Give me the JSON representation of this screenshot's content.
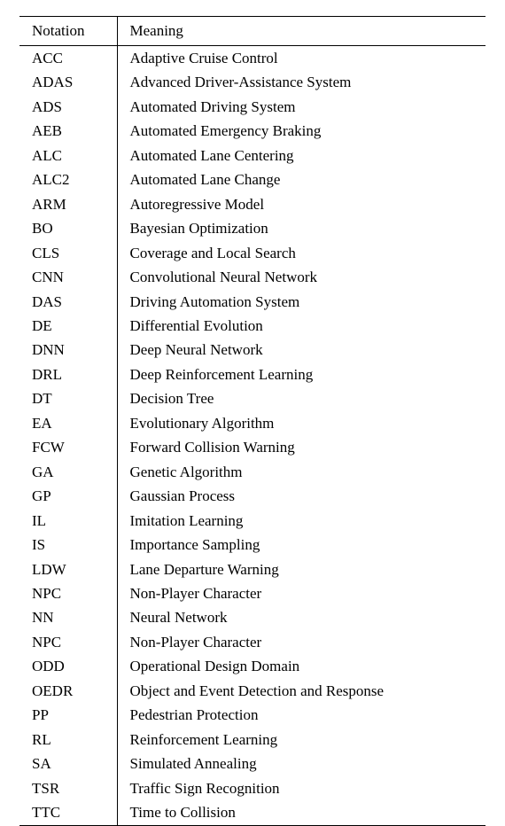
{
  "table": {
    "type": "table",
    "columns": [
      "Notation",
      "Meaning"
    ],
    "rows": [
      [
        "ACC",
        "Adaptive Cruise Control"
      ],
      [
        "ADAS",
        "Advanced Driver-Assistance System"
      ],
      [
        "ADS",
        "Automated Driving System"
      ],
      [
        "AEB",
        "Automated Emergency Braking"
      ],
      [
        "ALC",
        "Automated Lane Centering"
      ],
      [
        "ALC2",
        "Automated Lane Change"
      ],
      [
        "ARM",
        "Autoregressive Model"
      ],
      [
        "BO",
        "Bayesian Optimization"
      ],
      [
        "CLS",
        "Coverage and Local Search"
      ],
      [
        "CNN",
        "Convolutional Neural Network"
      ],
      [
        "DAS",
        "Driving Automation System"
      ],
      [
        "DE",
        "Differential Evolution"
      ],
      [
        "DNN",
        "Deep Neural Network"
      ],
      [
        "DRL",
        "Deep Reinforcement Learning"
      ],
      [
        "DT",
        "Decision Tree"
      ],
      [
        "EA",
        "Evolutionary Algorithm"
      ],
      [
        "FCW",
        "Forward Collision Warning"
      ],
      [
        "GA",
        "Genetic Algorithm"
      ],
      [
        "GP",
        "Gaussian Process"
      ],
      [
        "IL",
        "Imitation Learning"
      ],
      [
        "IS",
        "Importance Sampling"
      ],
      [
        "LDW",
        "Lane Departure Warning"
      ],
      [
        "NPC",
        "Non-Player Character"
      ],
      [
        "NN",
        "Neural Network"
      ],
      [
        "NPC",
        "Non-Player Character"
      ],
      [
        "ODD",
        "Operational Design Domain"
      ],
      [
        "OEDR",
        "Object and Event Detection and Response"
      ],
      [
        "PP",
        "Pedestrian Protection"
      ],
      [
        "RL",
        "Reinforcement Learning"
      ],
      [
        "SA",
        "Simulated Annealing"
      ],
      [
        "TSR",
        "Traffic Sign Recognition"
      ],
      [
        "TTC",
        "Time to Collision"
      ]
    ],
    "background_color": "#ffffff",
    "border_color": "#000000",
    "text_color": "#000000",
    "font_family": "Palatino",
    "fontsize": 17,
    "column_widths": [
      "110px",
      "auto"
    ]
  }
}
